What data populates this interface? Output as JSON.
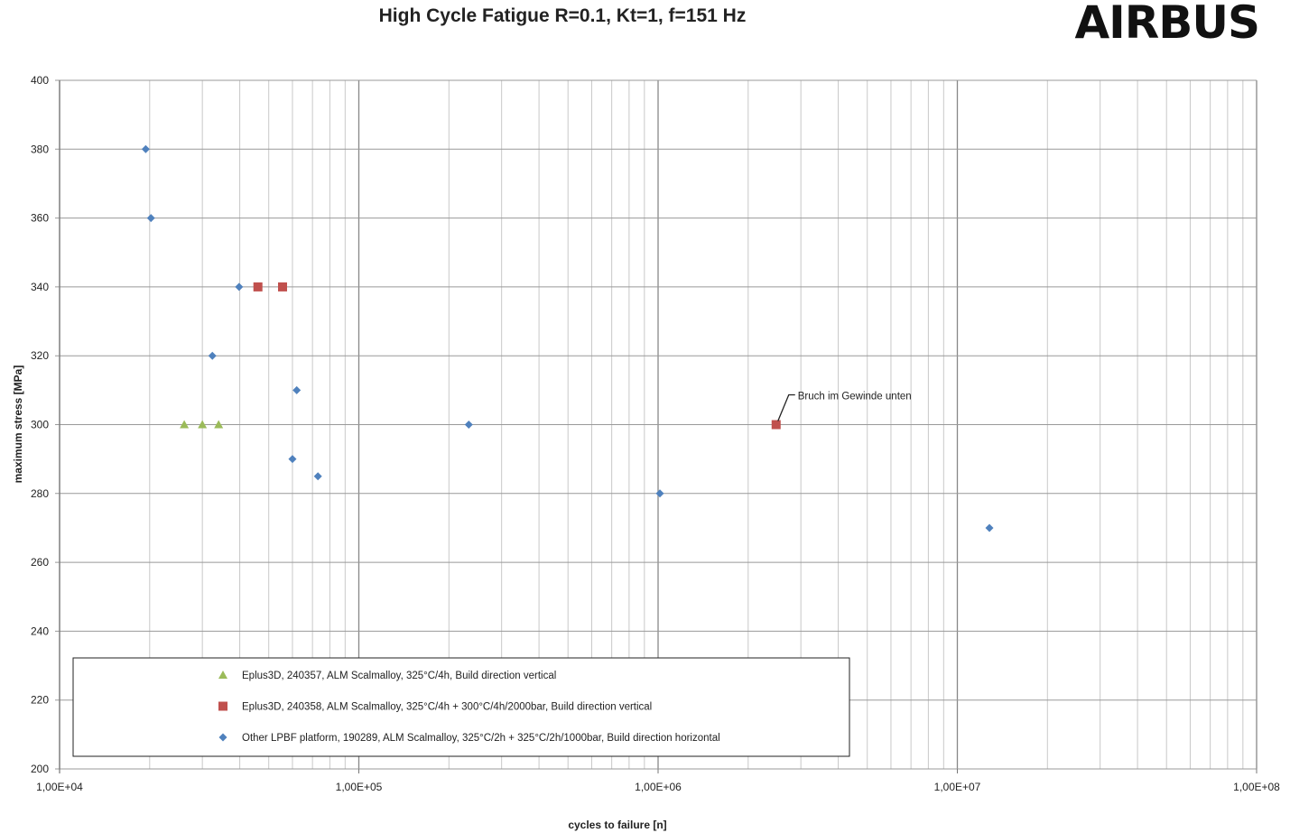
{
  "logo": "AIRBUS",
  "chart_data": {
    "type": "scatter",
    "title": "High Cycle Fatigue R=0.1, Kt=1, f=151 Hz",
    "xlabel": "cycles to failure [n]",
    "ylabel": "maximum stress [MPa]",
    "xscale": "log",
    "xlim": [
      10000,
      100000000
    ],
    "ylim": [
      200,
      400
    ],
    "xticks": [
      "1,00E+04",
      "1,00E+05",
      "1,00E+06",
      "1,00E+07",
      "1,00E+08"
    ],
    "yticks": [
      200,
      220,
      240,
      260,
      280,
      300,
      320,
      340,
      360,
      380,
      400
    ],
    "grid": true,
    "legend_placement": "bottom-left",
    "series": [
      {
        "name": "Eplus3D, 240357, ALM Scalmalloy, 325°C/4h, Build direction vertical",
        "marker": "triangle",
        "color": "#9BBB59",
        "points": [
          [
            26100,
            300
          ],
          [
            30000,
            300
          ],
          [
            34000,
            300
          ]
        ]
      },
      {
        "name": "Eplus3D, 240358, ALM Scalmalloy, 325°C/4h + 300°C/4h/2000bar, Build direction vertical",
        "marker": "square",
        "color": "#C0504D",
        "points": [
          [
            46000,
            340
          ],
          [
            55600,
            340
          ],
          [
            2480000,
            300
          ]
        ]
      },
      {
        "name": "Other LPBF platform, 190289, ALM Scalmalloy, 325°C/2h + 325°C/2h/1000bar, Build direction horizontal",
        "marker": "diamond",
        "color": "#4F81BD",
        "points": [
          [
            19400,
            380
          ],
          [
            20200,
            360
          ],
          [
            39800,
            340
          ],
          [
            32400,
            320
          ],
          [
            62000,
            310
          ],
          [
            60000,
            290
          ],
          [
            73000,
            285
          ],
          [
            233000,
            300
          ],
          [
            1014000,
            280
          ],
          [
            12800000,
            270
          ]
        ]
      }
    ],
    "annotations": [
      {
        "text": "Bruch im Gewinde unten",
        "x": 2480000,
        "y": 300
      }
    ]
  }
}
